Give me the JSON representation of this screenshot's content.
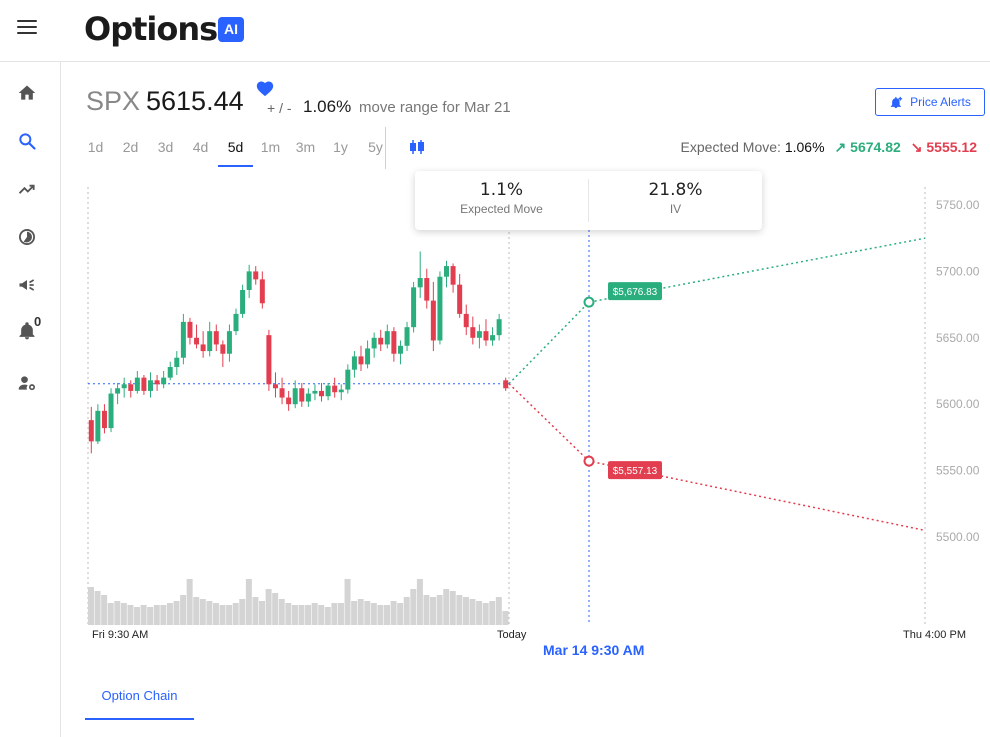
{
  "app": {
    "logo": "Options",
    "logo_badge": "AI"
  },
  "sidebar": {
    "items": [
      {
        "icon": "home-icon"
      },
      {
        "icon": "search-icon"
      },
      {
        "icon": "trending-icon"
      },
      {
        "icon": "pie-chart-icon"
      },
      {
        "icon": "megaphone-icon"
      },
      {
        "icon": "bell-icon",
        "badge": "0"
      },
      {
        "icon": "user-settings-icon"
      }
    ],
    "active_color": "#2962ff"
  },
  "header": {
    "ticker": "SPX",
    "price": "5615.44",
    "plus_minus": "+ / -",
    "move_pct": "1.06%",
    "range_text": "move range for Mar 21",
    "price_alerts_label": "Price Alerts"
  },
  "periods": [
    "1d",
    "2d",
    "3d",
    "4d",
    "5d",
    "1m",
    "3m",
    "1y",
    "5y"
  ],
  "active_period": "5d",
  "expected_move": {
    "label": "Expected Move:",
    "value": "1.06%",
    "up": "5674.82",
    "down": "5555.12",
    "up_arrow": "↗",
    "down_arrow": "↘"
  },
  "em_box": {
    "move_value": "1.1%",
    "move_label": "Expected Move",
    "iv_value": "21.8%",
    "iv_label": "IV"
  },
  "chart_data": {
    "type": "candlestick",
    "yticks": [
      "5750.00",
      "5700.00",
      "5650.00",
      "5600.00",
      "5550.00",
      "5500.00"
    ],
    "ylim": [
      5500,
      5750
    ],
    "xlabels": {
      "start": "Fri 9:30 AM",
      "today": "Today",
      "end": "Thu 4:00 PM",
      "marker": "Mar 14 9:30 AM"
    },
    "current_price": 5615.44,
    "upper_target_label": "$5,676.83",
    "lower_target_label": "$5,557.13",
    "upper_projection": {
      "at_marker": 5676.83,
      "at_end": 5725
    },
    "lower_projection": {
      "at_marker": 5557.13,
      "at_end": 5505
    },
    "up_color": "#2bae7d",
    "down_color": "#e23e4f",
    "candles": [
      [
        5588,
        5598,
        5563,
        5572
      ],
      [
        5572,
        5600,
        5570,
        5595
      ],
      [
        5595,
        5600,
        5578,
        5582
      ],
      [
        5582,
        5612,
        5579,
        5608
      ],
      [
        5608,
        5616,
        5600,
        5612
      ],
      [
        5612,
        5620,
        5605,
        5615
      ],
      [
        5615,
        5618,
        5605,
        5610
      ],
      [
        5610,
        5625,
        5608,
        5620
      ],
      [
        5620,
        5622,
        5607,
        5610
      ],
      [
        5610,
        5624,
        5605,
        5618
      ],
      [
        5618,
        5622,
        5610,
        5615
      ],
      [
        5615,
        5625,
        5612,
        5620
      ],
      [
        5620,
        5632,
        5618,
        5628
      ],
      [
        5628,
        5640,
        5622,
        5635
      ],
      [
        5635,
        5668,
        5630,
        5662
      ],
      [
        5662,
        5665,
        5645,
        5650
      ],
      [
        5650,
        5660,
        5642,
        5645
      ],
      [
        5645,
        5655,
        5635,
        5640
      ],
      [
        5640,
        5662,
        5636,
        5655
      ],
      [
        5655,
        5660,
        5640,
        5645
      ],
      [
        5645,
        5648,
        5628,
        5638
      ],
      [
        5638,
        5660,
        5632,
        5655
      ],
      [
        5655,
        5672,
        5652,
        5668
      ],
      [
        5668,
        5690,
        5665,
        5686
      ],
      [
        5686,
        5705,
        5680,
        5700
      ],
      [
        5700,
        5704,
        5690,
        5694
      ],
      [
        5694,
        5700,
        5672,
        5676
      ],
      [
        5652,
        5656,
        5610,
        5615
      ],
      [
        5615,
        5624,
        5605,
        5612
      ],
      [
        5612,
        5620,
        5600,
        5605
      ],
      [
        5605,
        5610,
        5595,
        5600
      ],
      [
        5600,
        5618,
        5597,
        5612
      ],
      [
        5612,
        5616,
        5598,
        5602
      ],
      [
        5602,
        5612,
        5598,
        5608
      ],
      [
        5608,
        5615,
        5603,
        5610
      ],
      [
        5610,
        5616,
        5602,
        5606
      ],
      [
        5606,
        5616,
        5603,
        5614
      ],
      [
        5614,
        5620,
        5605,
        5609
      ],
      [
        5609,
        5615,
        5603,
        5611
      ],
      [
        5611,
        5630,
        5608,
        5626
      ],
      [
        5626,
        5640,
        5620,
        5636
      ],
      [
        5636,
        5644,
        5625,
        5630
      ],
      [
        5630,
        5648,
        5627,
        5642
      ],
      [
        5642,
        5654,
        5635,
        5650
      ],
      [
        5650,
        5656,
        5640,
        5645
      ],
      [
        5645,
        5660,
        5642,
        5655
      ],
      [
        5655,
        5658,
        5632,
        5638
      ],
      [
        5638,
        5648,
        5630,
        5644
      ],
      [
        5644,
        5662,
        5640,
        5658
      ],
      [
        5658,
        5692,
        5654,
        5688
      ],
      [
        5688,
        5715,
        5680,
        5695
      ],
      [
        5695,
        5702,
        5672,
        5678
      ],
      [
        5678,
        5692,
        5640,
        5648
      ],
      [
        5648,
        5700,
        5645,
        5696
      ],
      [
        5696,
        5708,
        5688,
        5704
      ],
      [
        5704,
        5706,
        5684,
        5690
      ],
      [
        5690,
        5698,
        5665,
        5668
      ],
      [
        5668,
        5675,
        5652,
        5658
      ],
      [
        5658,
        5666,
        5645,
        5650
      ],
      [
        5650,
        5660,
        5642,
        5655
      ],
      [
        5655,
        5664,
        5644,
        5648
      ],
      [
        5648,
        5658,
        5644,
        5652
      ],
      [
        5652,
        5668,
        5648,
        5664
      ],
      [
        5618,
        5620,
        5610,
        5612
      ]
    ],
    "volume": [
      38,
      34,
      30,
      22,
      24,
      22,
      20,
      18,
      20,
      18,
      20,
      20,
      22,
      24,
      30,
      46,
      28,
      26,
      24,
      22,
      20,
      20,
      22,
      26,
      46,
      28,
      24,
      36,
      32,
      26,
      22,
      20,
      20,
      20,
      22,
      20,
      18,
      22,
      22,
      46,
      24,
      26,
      24,
      22,
      20,
      20,
      24,
      22,
      28,
      36,
      46,
      30,
      28,
      30,
      36,
      34,
      30,
      28,
      26,
      24,
      22,
      24,
      28,
      14
    ]
  },
  "bottom_tabs": {
    "option_chain": "Option Chain"
  }
}
